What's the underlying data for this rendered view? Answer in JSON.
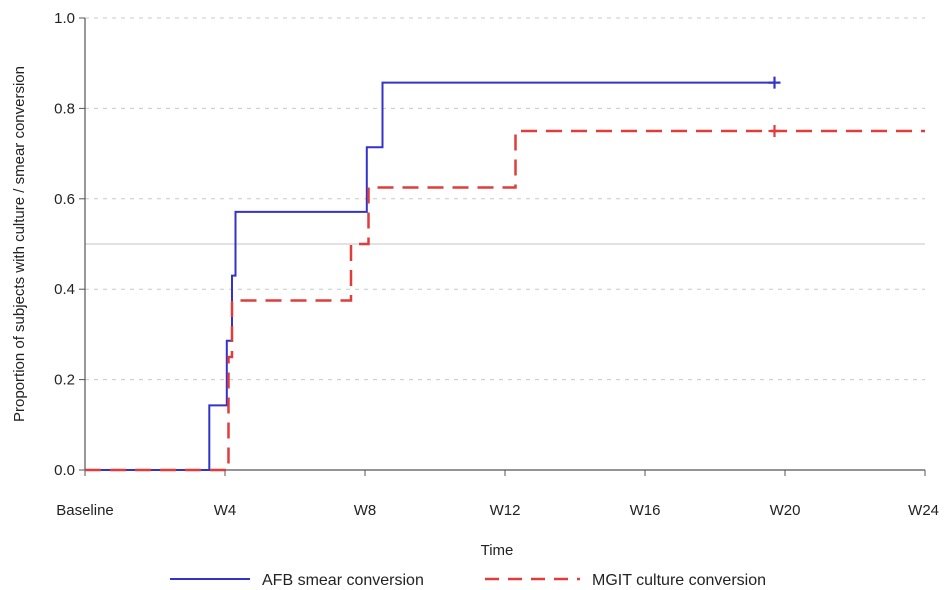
{
  "chart_data": {
    "type": "line",
    "title": "",
    "xlabel": "Time",
    "ylabel": "Proportion of subjects with culture / smear conversion",
    "x_ticks": [
      {
        "label": "Baseline",
        "value": 0
      },
      {
        "label": "W4",
        "value": 4
      },
      {
        "label": "W8",
        "value": 8
      },
      {
        "label": "W12",
        "value": 12
      },
      {
        "label": "W16",
        "value": 16
      },
      {
        "label": "W20",
        "value": 20
      },
      {
        "label": "W24",
        "value": 24
      }
    ],
    "y_ticks": [
      "0.0",
      "0.2",
      "0.4",
      "0.6",
      "0.8",
      "1.0"
    ],
    "xlim": [
      0,
      24
    ],
    "ylim": [
      0,
      1.0
    ],
    "grid": "horizontal dashed",
    "reference_line": 0.5,
    "legend_position": "bottom",
    "colors": {
      "afb": "#3333cc",
      "mgit": "#e03c3c",
      "grid": "#c8c8c8",
      "axis": "#555555"
    },
    "series": [
      {
        "name": "AFB smear conversion",
        "style": "solid",
        "color": "#3333cc",
        "points": [
          [
            0,
            0.0
          ],
          [
            3.55,
            0.0
          ],
          [
            3.55,
            0.143
          ],
          [
            4.05,
            0.143
          ],
          [
            4.05,
            0.286
          ],
          [
            4.2,
            0.286
          ],
          [
            4.2,
            0.43
          ],
          [
            4.3,
            0.43
          ],
          [
            4.3,
            0.571
          ],
          [
            8.05,
            0.571
          ],
          [
            8.05,
            0.714
          ],
          [
            8.5,
            0.714
          ],
          [
            8.5,
            0.857
          ],
          [
            19.7,
            0.857
          ]
        ],
        "censor": [
          [
            19.7,
            0.857
          ]
        ]
      },
      {
        "name": "MGIT culture conversion",
        "style": "dashed",
        "color": "#e03c3c",
        "points": [
          [
            0,
            0.0
          ],
          [
            4.1,
            0.0
          ],
          [
            4.1,
            0.25
          ],
          [
            4.2,
            0.25
          ],
          [
            4.2,
            0.375
          ],
          [
            7.6,
            0.375
          ],
          [
            7.6,
            0.5
          ],
          [
            8.1,
            0.5
          ],
          [
            8.1,
            0.625
          ],
          [
            12.3,
            0.625
          ],
          [
            12.3,
            0.75
          ],
          [
            24,
            0.75
          ]
        ],
        "censor": [
          [
            19.7,
            0.75
          ]
        ]
      }
    ]
  }
}
